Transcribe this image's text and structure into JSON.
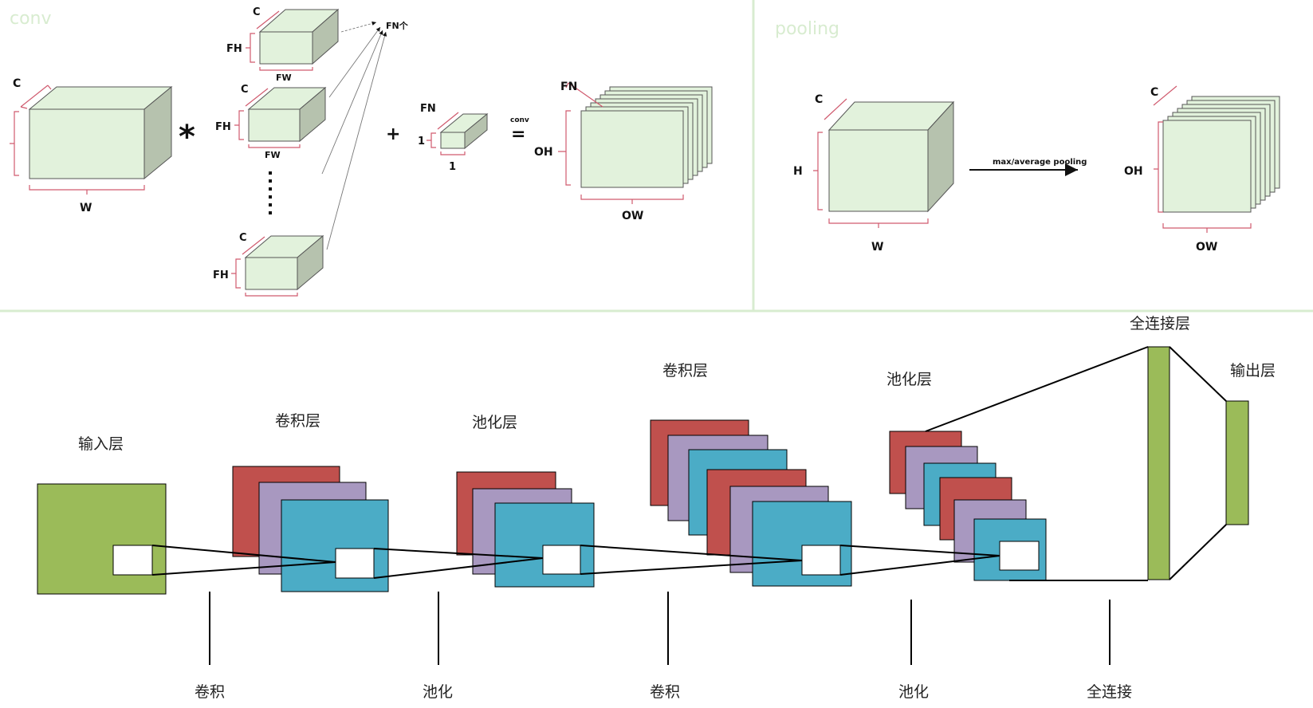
{
  "conv_panel": {
    "title": "conv",
    "labels": {
      "c": "C",
      "w": "W",
      "fh": "FH",
      "fw": "FW",
      "fn_count": "FN个",
      "multiply": "*",
      "plus": "+",
      "equals": "=",
      "conv_over_equals": "conv",
      "fn": "FN",
      "one": "1",
      "oh": "OH",
      "ow": "OW"
    }
  },
  "pool_panel": {
    "title": "pooling",
    "labels": {
      "c": "C",
      "h": "H",
      "w": "W",
      "arrow": "max/average pooling",
      "oh": "OH",
      "ow": "OW"
    }
  },
  "cnn": {
    "layer_titles": {
      "input": "输入层",
      "conv1": "卷积层",
      "pool1": "池化层",
      "conv2": "卷积层",
      "pool2": "池化层",
      "fc": "全连接层",
      "output": "输出层"
    },
    "operations": [
      "卷积",
      "池化",
      "卷积",
      "池化",
      "全连接"
    ],
    "colors": {
      "input_green": "#9bbb59",
      "map_red": "#c0504d",
      "map_purple": "#a898c0",
      "map_blue": "#4bacc6",
      "cube_face": "#e2f2dc",
      "cube_shade": "#b6c2ae",
      "bracket_red": "#d05a6e"
    }
  }
}
